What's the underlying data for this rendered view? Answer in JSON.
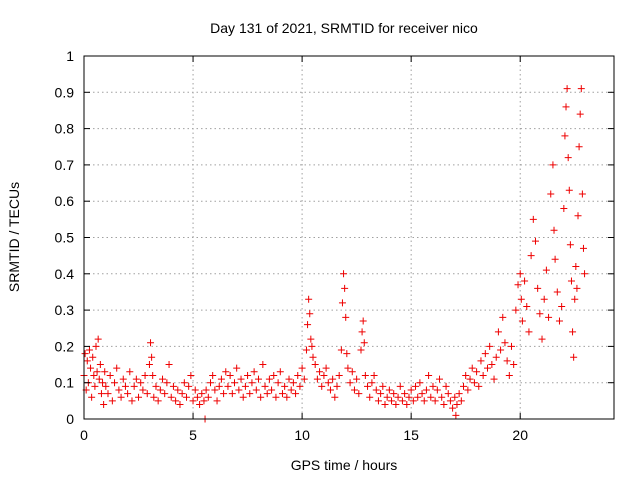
{
  "chart_data": {
    "type": "scatter",
    "title": "Day 131 of 2021, SRMTID for receiver nico",
    "xlabel": "GPS time / hours",
    "ylabel": "SRMTID / TECUs",
    "xlim": [
      0,
      24.3
    ],
    "ylim": [
      0,
      1
    ],
    "grid": true,
    "marker": "+",
    "marker_color": "#ee0000",
    "x_ticks": [
      0,
      5,
      10,
      15,
      20
    ],
    "x_tick_labels": [
      "0",
      "5",
      "10",
      "15",
      "20"
    ],
    "y_ticks": [
      0,
      0.1,
      0.2,
      0.3,
      0.4,
      0.5,
      0.6,
      0.7,
      0.8,
      0.9,
      1
    ],
    "y_tick_labels": [
      "0",
      "0.1",
      "0.2",
      "0.3",
      "0.4",
      "0.5",
      "0.6",
      "0.7",
      "0.8",
      "0.9",
      "1"
    ],
    "series": [
      {
        "name": "SRMTID",
        "points": [
          [
            0.0,
            0.12
          ],
          [
            0.05,
            0.18
          ],
          [
            0.1,
            0.08
          ],
          [
            0.15,
            0.16
          ],
          [
            0.2,
            0.1
          ],
          [
            0.25,
            0.19
          ],
          [
            0.3,
            0.14
          ],
          [
            0.35,
            0.06
          ],
          [
            0.4,
            0.17
          ],
          [
            0.45,
            0.12
          ],
          [
            0.5,
            0.09
          ],
          [
            0.55,
            0.2
          ],
          [
            0.6,
            0.13
          ],
          [
            0.65,
            0.22
          ],
          [
            0.7,
            0.11
          ],
          [
            0.75,
            0.15
          ],
          [
            0.8,
            0.07
          ],
          [
            0.85,
            0.1
          ],
          [
            0.9,
            0.04
          ],
          [
            0.95,
            0.13
          ],
          [
            1.0,
            0.09
          ],
          [
            1.1,
            0.07
          ],
          [
            1.2,
            0.12
          ],
          [
            1.3,
            0.05
          ],
          [
            1.4,
            0.1
          ],
          [
            1.5,
            0.14
          ],
          [
            1.6,
            0.08
          ],
          [
            1.7,
            0.06
          ],
          [
            1.8,
            0.11
          ],
          [
            1.9,
            0.09
          ],
          [
            2.0,
            0.07
          ],
          [
            2.1,
            0.13
          ],
          [
            2.2,
            0.05
          ],
          [
            2.3,
            0.09
          ],
          [
            2.4,
            0.11
          ],
          [
            2.5,
            0.06
          ],
          [
            2.6,
            0.1
          ],
          [
            2.7,
            0.08
          ],
          [
            2.8,
            0.12
          ],
          [
            2.9,
            0.07
          ],
          [
            3.0,
            0.15
          ],
          [
            3.05,
            0.21
          ],
          [
            3.1,
            0.17
          ],
          [
            3.15,
            0.12
          ],
          [
            3.2,
            0.06
          ],
          [
            3.3,
            0.09
          ],
          [
            3.4,
            0.05
          ],
          [
            3.5,
            0.08
          ],
          [
            3.6,
            0.11
          ],
          [
            3.7,
            0.07
          ],
          [
            3.8,
            0.1
          ],
          [
            3.9,
            0.15
          ],
          [
            4.0,
            0.06
          ],
          [
            4.1,
            0.09
          ],
          [
            4.2,
            0.05
          ],
          [
            4.3,
            0.08
          ],
          [
            4.4,
            0.04
          ],
          [
            4.5,
            0.07
          ],
          [
            4.6,
            0.1
          ],
          [
            4.7,
            0.06
          ],
          [
            4.8,
            0.09
          ],
          [
            4.9,
            0.12
          ],
          [
            5.0,
            0.05
          ],
          [
            5.1,
            0.08
          ],
          [
            5.2,
            0.06
          ],
          [
            5.3,
            0.04
          ],
          [
            5.4,
            0.07
          ],
          [
            5.5,
            0.05
          ],
          [
            5.55,
            0.0
          ],
          [
            5.6,
            0.08
          ],
          [
            5.7,
            0.06
          ],
          [
            5.8,
            0.1
          ],
          [
            5.9,
            0.12
          ],
          [
            6.0,
            0.08
          ],
          [
            6.1,
            0.05
          ],
          [
            6.2,
            0.09
          ],
          [
            6.3,
            0.11
          ],
          [
            6.4,
            0.07
          ],
          [
            6.5,
            0.13
          ],
          [
            6.6,
            0.09
          ],
          [
            6.7,
            0.12
          ],
          [
            6.8,
            0.07
          ],
          [
            6.9,
            0.1
          ],
          [
            7.0,
            0.14
          ],
          [
            7.1,
            0.08
          ],
          [
            7.2,
            0.11
          ],
          [
            7.3,
            0.06
          ],
          [
            7.4,
            0.09
          ],
          [
            7.5,
            0.12
          ],
          [
            7.6,
            0.07
          ],
          [
            7.7,
            0.1
          ],
          [
            7.8,
            0.13
          ],
          [
            7.9,
            0.08
          ],
          [
            8.0,
            0.11
          ],
          [
            8.1,
            0.06
          ],
          [
            8.2,
            0.15
          ],
          [
            8.3,
            0.09
          ],
          [
            8.4,
            0.07
          ],
          [
            8.5,
            0.11
          ],
          [
            8.6,
            0.08
          ],
          [
            8.7,
            0.12
          ],
          [
            8.8,
            0.06
          ],
          [
            8.9,
            0.1
          ],
          [
            9.0,
            0.13
          ],
          [
            9.1,
            0.07
          ],
          [
            9.2,
            0.09
          ],
          [
            9.3,
            0.06
          ],
          [
            9.4,
            0.11
          ],
          [
            9.5,
            0.08
          ],
          [
            9.6,
            0.1
          ],
          [
            9.7,
            0.07
          ],
          [
            9.8,
            0.12
          ],
          [
            9.9,
            0.09
          ],
          [
            10.0,
            0.14
          ],
          [
            10.1,
            0.11
          ],
          [
            10.2,
            0.19
          ],
          [
            10.25,
            0.26
          ],
          [
            10.3,
            0.33
          ],
          [
            10.35,
            0.29
          ],
          [
            10.4,
            0.22
          ],
          [
            10.45,
            0.2
          ],
          [
            10.5,
            0.17
          ],
          [
            10.6,
            0.15
          ],
          [
            10.7,
            0.11
          ],
          [
            10.8,
            0.13
          ],
          [
            10.9,
            0.09
          ],
          [
            11.0,
            0.12
          ],
          [
            11.1,
            0.14
          ],
          [
            11.2,
            0.1
          ],
          [
            11.3,
            0.08
          ],
          [
            11.4,
            0.11
          ],
          [
            11.5,
            0.06
          ],
          [
            11.6,
            0.09
          ],
          [
            11.7,
            0.12
          ],
          [
            11.8,
            0.19
          ],
          [
            11.85,
            0.32
          ],
          [
            11.9,
            0.4
          ],
          [
            11.95,
            0.36
          ],
          [
            12.0,
            0.28
          ],
          [
            12.05,
            0.18
          ],
          [
            12.1,
            0.14
          ],
          [
            12.2,
            0.1
          ],
          [
            12.3,
            0.13
          ],
          [
            12.4,
            0.08
          ],
          [
            12.5,
            0.11
          ],
          [
            12.6,
            0.07
          ],
          [
            12.7,
            0.19
          ],
          [
            12.75,
            0.24
          ],
          [
            12.8,
            0.27
          ],
          [
            12.85,
            0.21
          ],
          [
            12.9,
            0.12
          ],
          [
            13.0,
            0.09
          ],
          [
            13.1,
            0.06
          ],
          [
            13.2,
            0.1
          ],
          [
            13.3,
            0.12
          ],
          [
            13.4,
            0.08
          ],
          [
            13.5,
            0.05
          ],
          [
            13.6,
            0.07
          ],
          [
            13.7,
            0.09
          ],
          [
            13.8,
            0.04
          ],
          [
            13.9,
            0.06
          ],
          [
            14.0,
            0.08
          ],
          [
            14.1,
            0.05
          ],
          [
            14.2,
            0.07
          ],
          [
            14.3,
            0.04
          ],
          [
            14.4,
            0.06
          ],
          [
            14.5,
            0.09
          ],
          [
            14.6,
            0.05
          ],
          [
            14.7,
            0.07
          ],
          [
            14.8,
            0.04
          ],
          [
            14.9,
            0.06
          ],
          [
            15.0,
            0.08
          ],
          [
            15.1,
            0.05
          ],
          [
            15.2,
            0.09
          ],
          [
            15.3,
            0.06
          ],
          [
            15.4,
            0.1
          ],
          [
            15.5,
            0.07
          ],
          [
            15.6,
            0.05
          ],
          [
            15.7,
            0.08
          ],
          [
            15.8,
            0.12
          ],
          [
            15.9,
            0.06
          ],
          [
            16.0,
            0.09
          ],
          [
            16.1,
            0.05
          ],
          [
            16.2,
            0.08
          ],
          [
            16.3,
            0.11
          ],
          [
            16.4,
            0.06
          ],
          [
            16.5,
            0.04
          ],
          [
            16.6,
            0.09
          ],
          [
            16.7,
            0.07
          ],
          [
            16.8,
            0.05
          ],
          [
            16.9,
            0.03
          ],
          [
            17.0,
            0.06
          ],
          [
            17.05,
            0.01
          ],
          [
            17.1,
            0.04
          ],
          [
            17.2,
            0.07
          ],
          [
            17.3,
            0.05
          ],
          [
            17.4,
            0.09
          ],
          [
            17.5,
            0.12
          ],
          [
            17.6,
            0.08
          ],
          [
            17.7,
            0.11
          ],
          [
            17.8,
            0.14
          ],
          [
            17.9,
            0.1
          ],
          [
            18.0,
            0.13
          ],
          [
            18.1,
            0.09
          ],
          [
            18.2,
            0.16
          ],
          [
            18.3,
            0.12
          ],
          [
            18.4,
            0.18
          ],
          [
            18.5,
            0.14
          ],
          [
            18.6,
            0.2
          ],
          [
            18.7,
            0.15
          ],
          [
            18.8,
            0.11
          ],
          [
            18.9,
            0.17
          ],
          [
            19.0,
            0.24
          ],
          [
            19.1,
            0.19
          ],
          [
            19.2,
            0.28
          ],
          [
            19.3,
            0.21
          ],
          [
            19.4,
            0.16
          ],
          [
            19.5,
            0.12
          ],
          [
            19.6,
            0.2
          ],
          [
            19.7,
            0.15
          ],
          [
            19.8,
            0.3
          ],
          [
            19.9,
            0.37
          ],
          [
            20.0,
            0.4
          ],
          [
            20.05,
            0.33
          ],
          [
            20.1,
            0.27
          ],
          [
            20.2,
            0.38
          ],
          [
            20.3,
            0.31
          ],
          [
            20.4,
            0.24
          ],
          [
            20.5,
            0.45
          ],
          [
            20.6,
            0.55
          ],
          [
            20.7,
            0.49
          ],
          [
            20.8,
            0.36
          ],
          [
            20.9,
            0.29
          ],
          [
            21.0,
            0.22
          ],
          [
            21.1,
            0.33
          ],
          [
            21.2,
            0.41
          ],
          [
            21.3,
            0.28
          ],
          [
            21.4,
            0.62
          ],
          [
            21.5,
            0.7
          ],
          [
            21.55,
            0.52
          ],
          [
            21.6,
            0.44
          ],
          [
            21.7,
            0.35
          ],
          [
            21.8,
            0.27
          ],
          [
            21.9,
            0.31
          ],
          [
            22.0,
            0.58
          ],
          [
            22.05,
            0.78
          ],
          [
            22.1,
            0.86
          ],
          [
            22.15,
            0.91
          ],
          [
            22.2,
            0.72
          ],
          [
            22.25,
            0.63
          ],
          [
            22.3,
            0.48
          ],
          [
            22.35,
            0.38
          ],
          [
            22.4,
            0.24
          ],
          [
            22.45,
            0.17
          ],
          [
            22.5,
            0.33
          ],
          [
            22.55,
            0.42
          ],
          [
            22.6,
            0.36
          ],
          [
            22.65,
            0.56
          ],
          [
            22.7,
            0.75
          ],
          [
            22.75,
            0.84
          ],
          [
            22.8,
            0.91
          ],
          [
            22.85,
            0.62
          ],
          [
            22.9,
            0.47
          ],
          [
            22.95,
            0.4
          ]
        ]
      }
    ]
  }
}
